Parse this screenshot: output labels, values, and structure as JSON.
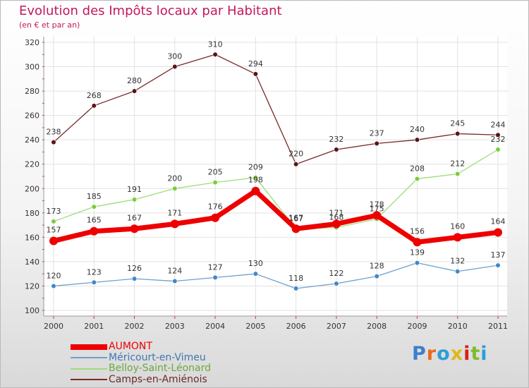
{
  "chart_data": {
    "type": "line",
    "title": "Evolution des Impôts locaux par Habitant",
    "subtitle": "(en € et par an)",
    "categories": [
      "2000",
      "2001",
      "2002",
      "2003",
      "2004",
      "2005",
      "2006",
      "2007",
      "2008",
      "2009",
      "2010",
      "2011"
    ],
    "ylim": [
      100,
      320
    ],
    "yticks": [
      100,
      120,
      140,
      160,
      180,
      200,
      220,
      240,
      260,
      280,
      300,
      320
    ],
    "grid": true,
    "series": [
      {
        "name": "Camps-en-Amiénois",
        "color": "#7a2a2a",
        "point_color": "#5a1414",
        "values": [
          238,
          268,
          280,
          300,
          310,
          294,
          220,
          232,
          237,
          240,
          245,
          244
        ]
      },
      {
        "name": "Belloy-Saint-Léonard",
        "color": "#9edc7a",
        "point_color": "#7ccc3e",
        "values": [
          173,
          185,
          191,
          200,
          205,
          209,
          167,
          168,
          175,
          208,
          212,
          232
        ]
      },
      {
        "name": "Méricourt-en-Vimeu",
        "color": "#6fa0cc",
        "point_color": "#3f88c8",
        "values": [
          120,
          123,
          126,
          124,
          127,
          130,
          118,
          122,
          128,
          139,
          132,
          137
        ]
      },
      {
        "name": "AUMONT",
        "color": "#ee0000",
        "point_color": "#ee0000",
        "values": [
          157,
          165,
          167,
          171,
          176,
          198,
          167,
          171,
          178,
          156,
          160,
          164
        ]
      }
    ],
    "legend": [
      "AUMONT",
      "Méricourt-en-Vimeu",
      "Belloy-Saint-Léonard",
      "Camps-en-Amiénois"
    ]
  },
  "logo": {
    "letters": [
      "P",
      "r",
      "o",
      "x",
      "i",
      "t",
      "i"
    ],
    "colors": [
      "#3b7fd0",
      "#e86b1a",
      "#2a9fd8",
      "#e0b81a",
      "#d8201a",
      "#7cbc2a",
      "#2a9fd8"
    ]
  }
}
